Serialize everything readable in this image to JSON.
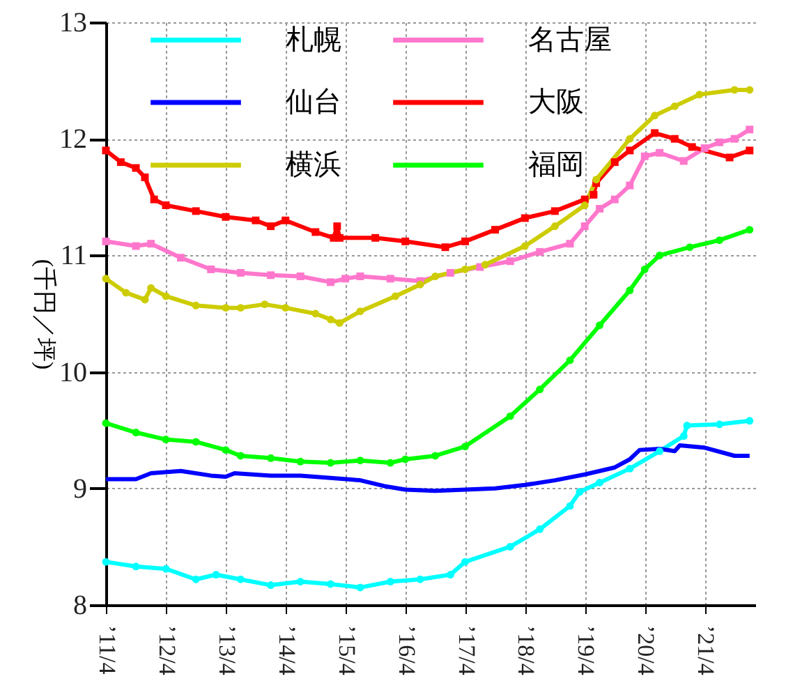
{
  "chart_data": {
    "type": "line",
    "ylabel": "(千円／坪)",
    "xlim": [
      "2011-04-01",
      "2022-02-05"
    ],
    "xticks": [
      {
        "value": "2011-04",
        "label": "’11/4"
      },
      {
        "value": "2012-04",
        "label": "’12/4"
      },
      {
        "value": "2013-04",
        "label": "’13/4"
      },
      {
        "value": "2014-04",
        "label": "’14/4"
      },
      {
        "value": "2015-04",
        "label": "’15/4"
      },
      {
        "value": "2016-04",
        "label": "’16/4"
      },
      {
        "value": "2017-04",
        "label": "’17/4"
      },
      {
        "value": "2018-04",
        "label": "’18/4"
      },
      {
        "value": "2019-04",
        "label": "’19/4"
      },
      {
        "value": "2020-04",
        "label": "’20/4"
      },
      {
        "value": "2021-04",
        "label": "’21/4"
      }
    ],
    "ylim": [
      8,
      13
    ],
    "yticks": [
      8,
      9,
      10,
      11,
      12,
      13
    ],
    "grid": true,
    "legend": "top left",
    "line_style": "solid",
    "series": [
      {
        "name": "札幌",
        "color": "#00ffff",
        "marker": "circle",
        "x": [
          "2011-04",
          "2011-10",
          "2012-04",
          "2012-10",
          "2013-02",
          "2013-07",
          "2014-01",
          "2014-07",
          "2015-01",
          "2015-07",
          "2016-01",
          "2016-07",
          "2017-01",
          "2017-04",
          "2018-01",
          "2018-07",
          "2019-01",
          "2019-03",
          "2019-07",
          "2020-01",
          "2020-07",
          "2020-11-25",
          "2020-12-15",
          "2021-07",
          "2022-01"
        ],
        "values": [
          8.37,
          8.33,
          8.31,
          8.22,
          8.26,
          8.22,
          8.17,
          8.2,
          8.18,
          8.15,
          8.2,
          8.22,
          8.26,
          8.37,
          8.5,
          8.65,
          8.85,
          8.97,
          9.05,
          9.17,
          9.32,
          9.45,
          9.54,
          9.55,
          9.58
        ]
      },
      {
        "name": "名古屋",
        "color": "#ff77cc",
        "marker": "square",
        "x": [
          "2011-04",
          "2011-10",
          "2012-01",
          "2012-07",
          "2013-01",
          "2013-07",
          "2014-01",
          "2014-07",
          "2015-01",
          "2015-04",
          "2015-07",
          "2016-01",
          "2016-07",
          "2017-01",
          "2017-07",
          "2018-01",
          "2018-07",
          "2019-01",
          "2019-04",
          "2019-07",
          "2019-10",
          "2020-01",
          "2020-04",
          "2020-07",
          "2020-11-25",
          "2021-04",
          "2021-07",
          "2021-10",
          "2022-01"
        ],
        "values": [
          11.12,
          11.08,
          11.1,
          10.98,
          10.88,
          10.85,
          10.83,
          10.82,
          10.77,
          10.8,
          10.82,
          10.8,
          10.78,
          10.85,
          10.9,
          10.95,
          11.03,
          11.1,
          11.25,
          11.4,
          11.48,
          11.6,
          11.85,
          11.88,
          11.81,
          11.92,
          11.97,
          12.0,
          12.08
        ]
      },
      {
        "name": "仙台",
        "color": "#0000ff",
        "marker": "none",
        "x": [
          "2011-04",
          "2011-10",
          "2012-01",
          "2012-07",
          "2013-01",
          "2013-04",
          "2013-05-25",
          "2014-01",
          "2014-07",
          "2015-01",
          "2015-07",
          "2015-11-25",
          "2016-04",
          "2016-10",
          "2017-04",
          "2017-10",
          "2018-04",
          "2018-10",
          "2019-04",
          "2019-10",
          "2020-01",
          "2020-03",
          "2020-07",
          "2020-10",
          "2020-11",
          "2021-04",
          "2021-10",
          "2022-01"
        ],
        "values": [
          9.08,
          9.08,
          9.13,
          9.15,
          9.11,
          9.1,
          9.13,
          9.11,
          9.11,
          9.09,
          9.07,
          9.02,
          8.99,
          8.98,
          8.99,
          9.0,
          9.03,
          9.07,
          9.12,
          9.18,
          9.25,
          9.33,
          9.34,
          9.32,
          9.37,
          9.35,
          9.28,
          9.28
        ]
      },
      {
        "name": "大阪",
        "color": "#ff0000",
        "marker": "square",
        "x": [
          "2011-04",
          "2011-07",
          "2011-10",
          "2011-11-25",
          "2012-01-20",
          "2012-04",
          "2012-10",
          "2013-04",
          "2013-10",
          "2014-01",
          "2014-04",
          "2014-10",
          "2015-01-20",
          "2015-02-10",
          "2015-02-25",
          "2015-10",
          "2016-04",
          "2016-12",
          "2017-04",
          "2017-10",
          "2018-04",
          "2018-10",
          "2019-04",
          "2019-05-25",
          "2019-06-10",
          "2019-10",
          "2020-01",
          "2020-06",
          "2020-10",
          "2021-01-15",
          "2021-09",
          "2022-01"
        ],
        "values": [
          11.9,
          11.8,
          11.75,
          11.67,
          11.48,
          11.43,
          11.38,
          11.33,
          11.3,
          11.25,
          11.3,
          11.2,
          11.15,
          11.25,
          11.15,
          11.15,
          11.12,
          11.07,
          11.12,
          11.22,
          11.32,
          11.38,
          11.48,
          11.52,
          11.62,
          11.8,
          11.9,
          12.05,
          12.0,
          11.93,
          11.84,
          11.9
        ]
      },
      {
        "name": "横浜",
        "color": "#cccc00",
        "marker": "circle",
        "x": [
          "2011-04",
          "2011-08",
          "2011-11-25",
          "2012-01",
          "2012-04",
          "2012-10",
          "2013-04",
          "2013-07",
          "2013-11-25",
          "2014-04",
          "2014-10",
          "2015-01",
          "2015-02-25",
          "2015-07",
          "2016-02",
          "2016-07",
          "2016-10",
          "2017-04",
          "2017-08",
          "2018-04",
          "2018-10",
          "2019-04",
          "2019-06-10",
          "2020-01",
          "2020-06",
          "2020-10",
          "2021-03",
          "2021-10",
          "2022-01"
        ],
        "values": [
          10.8,
          10.68,
          10.62,
          10.72,
          10.65,
          10.57,
          10.55,
          10.55,
          10.58,
          10.55,
          10.5,
          10.45,
          10.42,
          10.52,
          10.65,
          10.75,
          10.82,
          10.88,
          10.92,
          11.08,
          11.25,
          11.43,
          11.65,
          12.0,
          12.2,
          12.28,
          12.38,
          12.42,
          12.42
        ]
      },
      {
        "name": "福岡",
        "color": "#00ff00",
        "marker": "circle",
        "x": [
          "2011-04",
          "2011-10",
          "2012-04",
          "2012-10",
          "2013-04",
          "2013-07",
          "2014-01",
          "2014-07",
          "2015-01",
          "2015-07",
          "2016-01",
          "2016-04",
          "2016-10",
          "2017-04",
          "2018-01",
          "2018-07",
          "2019-01",
          "2019-07",
          "2020-01",
          "2020-04",
          "2020-07",
          "2021-01",
          "2021-07",
          "2022-01"
        ],
        "values": [
          9.56,
          9.48,
          9.42,
          9.4,
          9.33,
          9.28,
          9.26,
          9.23,
          9.22,
          9.24,
          9.22,
          9.25,
          9.28,
          9.36,
          9.62,
          9.85,
          10.1,
          10.4,
          10.7,
          10.88,
          11.0,
          11.07,
          11.13,
          11.22
        ]
      }
    ]
  }
}
